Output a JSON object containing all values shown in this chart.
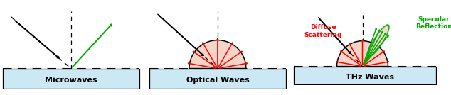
{
  "fig_width": 6.34,
  "fig_height": 1.34,
  "dpi": 100,
  "bg_color": "#ffffff",
  "surface_color": "#cce8f4",
  "hemisphere_fill": "#f5d5c8",
  "hemisphere_edge": "#000000",
  "black": "#000000",
  "green": "#00aa00",
  "red": "#ff0000",
  "panel_labels": [
    "Microwaves",
    "Optical Waves",
    "THz Waves"
  ],
  "label_fontsize": 8.0,
  "annot_fontsize": 6.5
}
